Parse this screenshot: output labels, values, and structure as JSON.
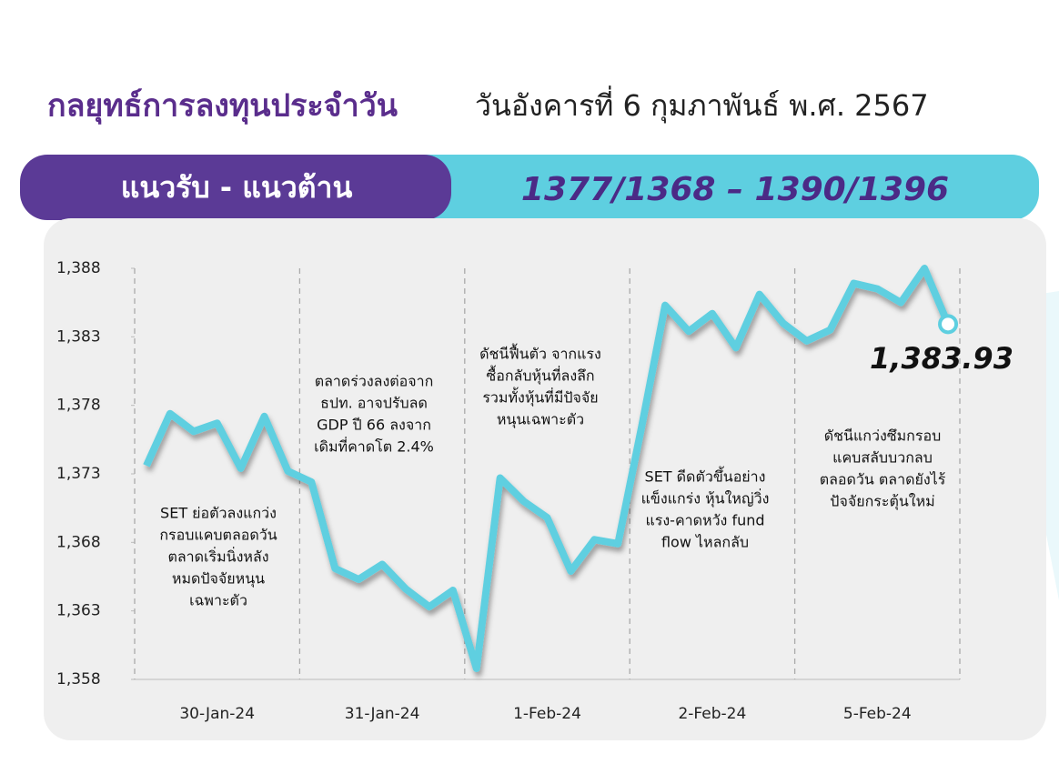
{
  "header": {
    "title": "กลยุทธ์การลงทุนประจำวัน",
    "date": "วันอังคารที่ 6 กุมภาพันธ์ พ.ศ. 2567"
  },
  "banner": {
    "label": "แนวรับ - แนวต้าน",
    "levels": "1377/1368 – 1390/1396"
  },
  "chart_data": {
    "type": "line",
    "color": "#5ecfe0",
    "categories": [
      "30-Jan-24",
      "31-Jan-24",
      "1-Feb-24",
      "2-Feb-24",
      "5-Feb-24"
    ],
    "values": [
      [
        1373.6,
        1377.4,
        1376.1,
        1376.7,
        1373.4,
        1377.2,
        1373.2
      ],
      [
        1372.4,
        1366.1,
        1365.3,
        1366.4,
        1364.6,
        1363.3,
        1364.5
      ],
      [
        1358.8,
        1372.7,
        1371.0,
        1369.8,
        1365.9,
        1368.2,
        1367.9
      ],
      [
        1376.4,
        1385.3,
        1383.4,
        1384.7,
        1382.2,
        1386.1,
        1384.0
      ],
      [
        1382.7,
        1383.5,
        1386.9,
        1386.5,
        1385.5,
        1388.0,
        1383.93
      ]
    ],
    "end_label": "1,383.93",
    "ylim": [
      1358,
      1388
    ],
    "yticks": [
      {
        "value": 1358,
        "label": "1,358"
      },
      {
        "value": 1363,
        "label": "1,363"
      },
      {
        "value": 1368,
        "label": "1,368"
      },
      {
        "value": 1373,
        "label": "1,373"
      },
      {
        "value": 1378,
        "label": "1,378"
      },
      {
        "value": 1383,
        "label": "1,383"
      },
      {
        "value": 1388,
        "label": "1,388"
      }
    ],
    "annotations": [
      [
        "SET ย่อตัวลงแกว่ง",
        "กรอบแคบตลอดวัน",
        "ตลาดเริ่มนิ่งหลัง",
        "หมดปัจจัยหนุน",
        "เฉพาะตัว"
      ],
      [
        "ตลาดร่วงลงต่อจาก",
        "ธปท. อาจปรับลด",
        "GDP ปี 66 ลงจาก",
        "เดิมที่คาดโต 2.4%"
      ],
      [
        "ดัชนีฟื้นตัว จากแรง",
        "ซื้อกลับหุ้นที่ลงลึก",
        "รวมทั้งหุ้นที่มีปัจจัย",
        "หนุนเฉพาะตัว"
      ],
      [
        "SET ดีดตัวขึ้นอย่าง",
        "แข็งแกร่ง หุ้นใหญ่วิ่ง",
        "แรง-คาดหวัง fund",
        "flow ไหลกลับ"
      ],
      [
        "ดัชนีแกว่งซึมกรอบ",
        "แคบสลับบวกลบ",
        "ตลอดวัน ตลาดยังไร้",
        "ปัจจัยกระตุ้นใหม่"
      ]
    ]
  }
}
